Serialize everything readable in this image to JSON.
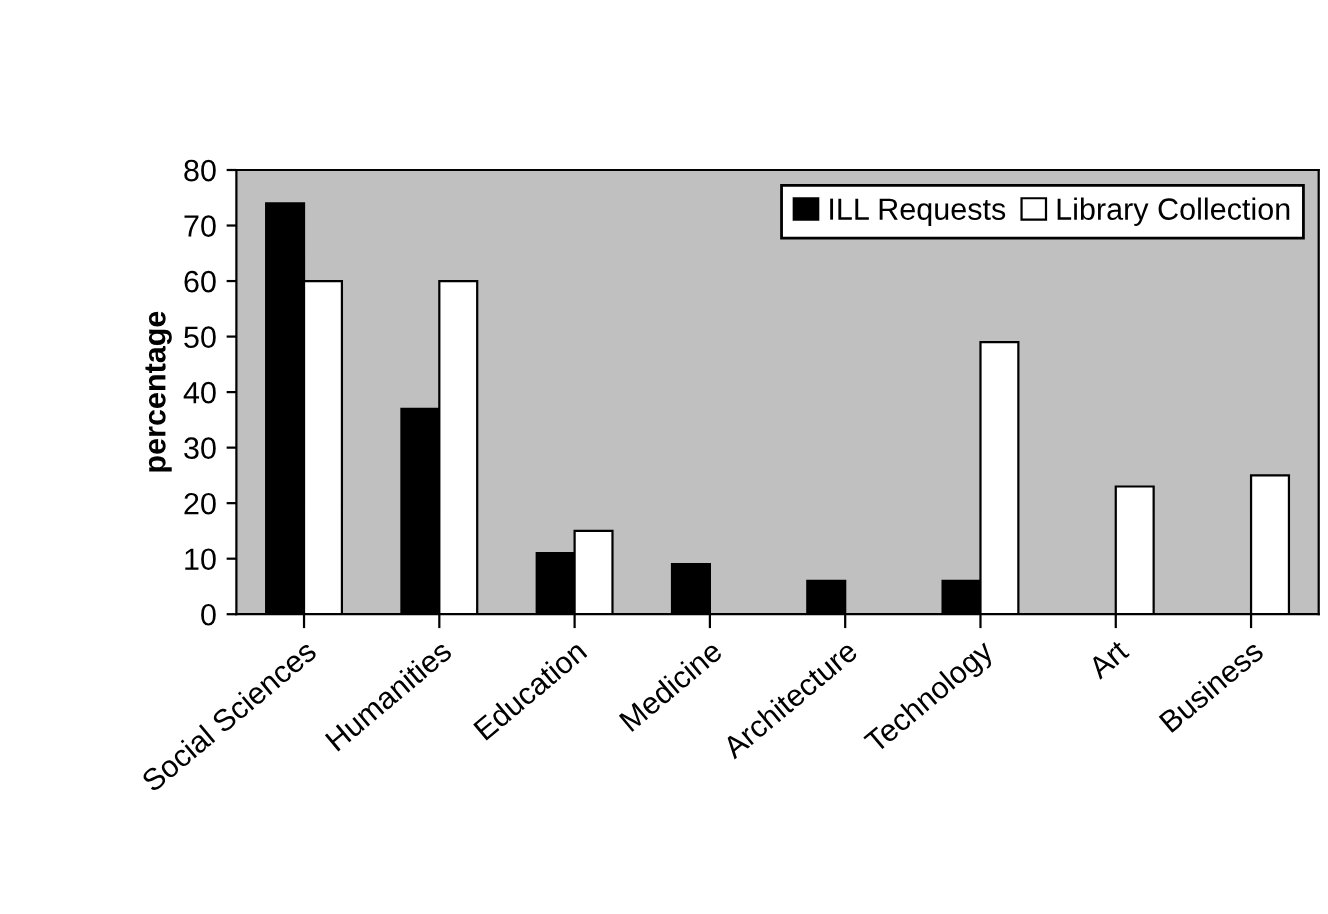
{
  "chart_data": {
    "type": "bar",
    "ylabel": "percentage",
    "categories": [
      "Social Sciences",
      "Humanities",
      "Education",
      "Medicine",
      "Architecture",
      "Technology",
      "Art",
      "Business"
    ],
    "series": [
      {
        "name": "ILL Requests",
        "color": "#000000",
        "values": [
          74,
          37,
          11,
          9,
          6,
          6,
          null,
          null
        ]
      },
      {
        "name": "Library Collection",
        "color": "#ffffff",
        "values": [
          60,
          60,
          15,
          null,
          null,
          49,
          23,
          25
        ]
      }
    ],
    "ylim": [
      0,
      80
    ],
    "yticks": [
      0,
      10,
      20,
      30,
      40,
      50,
      60,
      70,
      80
    ],
    "grid": false,
    "legend": "top right"
  }
}
